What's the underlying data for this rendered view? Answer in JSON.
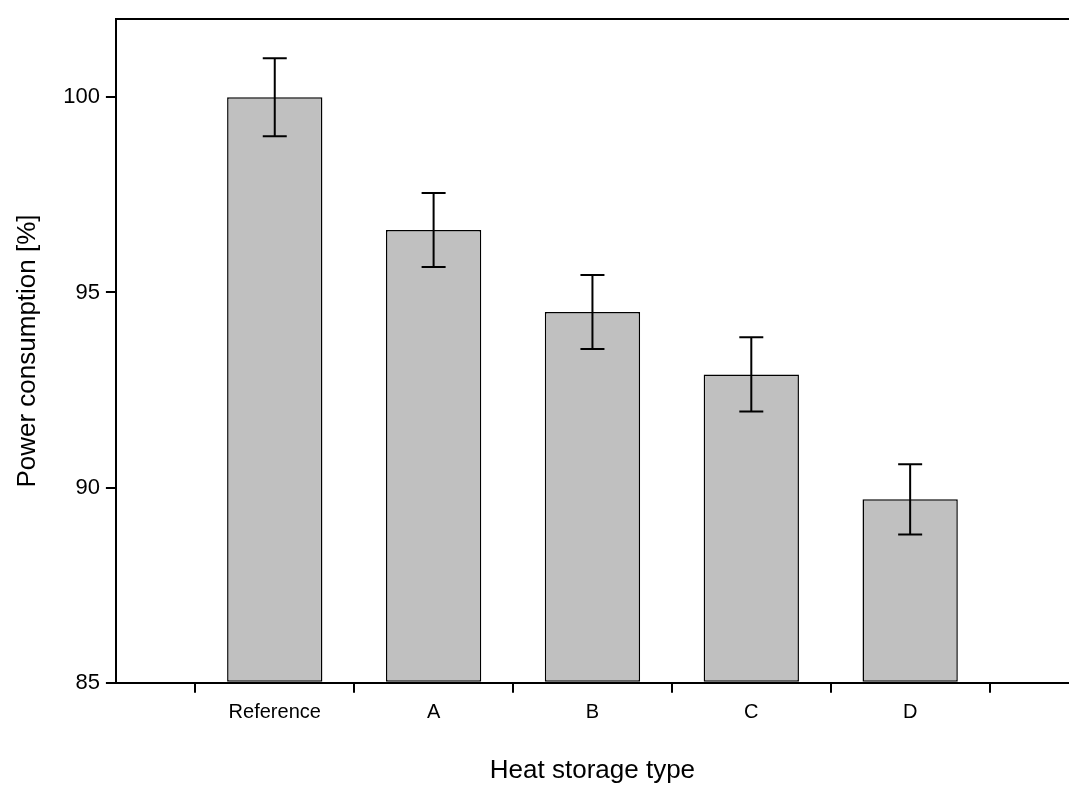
{
  "chart_data": {
    "type": "bar",
    "xlabel": "Heat storage type",
    "ylabel": "Power consumption [%]",
    "categories": [
      "Reference",
      "A",
      "B",
      "C",
      "D"
    ],
    "values": [
      100,
      96.6,
      94.5,
      92.9,
      89.7
    ],
    "errors": [
      1,
      0.95,
      0.95,
      0.95,
      0.9
    ],
    "color": "#c0c0c0",
    "ylim": [
      85,
      102
    ],
    "yticks": [
      85,
      90,
      95,
      100
    ]
  }
}
